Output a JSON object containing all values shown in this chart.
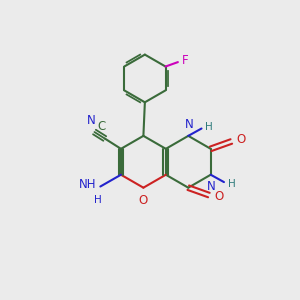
{
  "bg_color": "#ebebeb",
  "bond_color": "#3a6b3a",
  "n_color": "#2222cc",
  "o_color": "#cc2222",
  "f_color": "#cc00bb",
  "c_color": "#3a6b3a",
  "h_color": "#2d7a7a",
  "bond_lw": 1.5,
  "fs": 8.5,
  "xlim": [
    0,
    10
  ],
  "ylim": [
    0,
    10
  ]
}
